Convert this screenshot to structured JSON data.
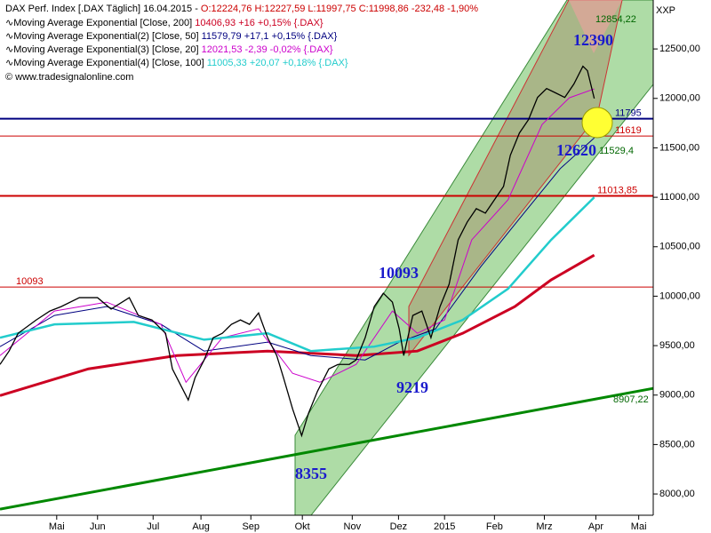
{
  "chart_data": {
    "type": "line",
    "title": "DAX Perf. Index [.DAX Täglich] 16.04.2015 - ",
    "ohlc": "O:12224,76 H:12227,59 L:11997,75 C:11998,86 -232,48 -1,90%",
    "source": "© www.tradesignalonline.com",
    "axis_label": "XXP",
    "xlim": [
      0,
      288
    ],
    "xticks": [
      {
        "value": 25,
        "label": "Mai"
      },
      {
        "value": 43,
        "label": "Jun"
      },
      {
        "value": 67.5,
        "label": "Jul"
      },
      {
        "value": 88.6,
        "label": "Aug"
      },
      {
        "value": 110.6,
        "label": "Sep"
      },
      {
        "value": 133.3,
        "label": "Okt"
      },
      {
        "value": 155.3,
        "label": "Nov"
      },
      {
        "value": 175.7,
        "label": "Dez"
      },
      {
        "value": 196,
        "label": "2015"
      },
      {
        "value": 218,
        "label": "Feb"
      },
      {
        "value": 240,
        "label": "Mrz"
      },
      {
        "value": 262.7,
        "label": "Apr"
      },
      {
        "value": 281.6,
        "label": "Mai"
      }
    ],
    "ylim": [
      7785,
      12995
    ],
    "yticks": [
      {
        "value": 8000,
        "label": "8000,00"
      },
      {
        "value": 8500,
        "label": "8500,00"
      },
      {
        "value": 9000,
        "label": "9000,00"
      },
      {
        "value": 9500,
        "label": "9500,00"
      },
      {
        "value": 10000,
        "label": "10000,00"
      },
      {
        "value": 10500,
        "label": "10500,00"
      },
      {
        "value": 11000,
        "label": "11000,00"
      },
      {
        "value": 11500,
        "label": "11500,00"
      },
      {
        "value": 12000,
        "label": "12000,00"
      },
      {
        "value": 12500,
        "label": "12500,00"
      }
    ],
    "price": {
      "color": "#000000",
      "x": [
        0,
        4,
        8,
        16,
        22,
        27,
        35,
        43,
        49,
        57,
        61,
        67,
        73,
        76,
        80,
        83,
        86,
        90,
        94,
        98,
        102,
        106,
        110,
        114,
        118,
        122,
        125,
        129,
        133,
        136,
        140,
        145,
        149,
        154,
        157,
        161,
        165,
        169,
        173,
        176,
        178,
        182,
        186,
        190,
        194,
        198,
        202,
        206,
        210,
        214,
        218,
        222,
        225,
        229,
        233,
        237,
        241,
        245,
        249,
        253,
        257,
        259,
        262
      ],
      "values": [
        9310,
        9445,
        9625,
        9760,
        9850,
        9895,
        9985,
        9985,
        9870,
        9985,
        9805,
        9760,
        9625,
        9265,
        9085,
        8950,
        9175,
        9355,
        9580,
        9625,
        9715,
        9760,
        9715,
        9830,
        9580,
        9400,
        9175,
        8860,
        8590,
        8815,
        9040,
        9265,
        9310,
        9310,
        9355,
        9580,
        9895,
        10030,
        9940,
        9670,
        9400,
        9805,
        9850,
        9580,
        9895,
        10120,
        10570,
        10750,
        10885,
        10840,
        10975,
        11110,
        11425,
        11650,
        11785,
        12010,
        12100,
        12055,
        12010,
        12145,
        12325,
        12280,
        11999
      ]
    },
    "series": [
      {
        "name": "Moving Average Exponential [Close, 200]",
        "stat": "10406,93 +16 +0,15% {.DAX}",
        "color": "#cc0022",
        "width": 3,
        "x": [
          0,
          39,
          78,
          118,
          157,
          184,
          204,
          227,
          243,
          262
        ],
        "values": [
          8995,
          9265,
          9400,
          9445,
          9400,
          9445,
          9625,
          9895,
          10165,
          10415
        ]
      },
      {
        "name": "Moving Average Exponential(2) [Close, 50]",
        "stat": "11579,79 +17,1 +0,15% {.DAX}",
        "color": "#000080",
        "width": 1,
        "x": [
          0,
          24,
          47,
          71,
          90,
          118,
          137,
          161,
          176,
          192,
          212,
          231,
          247,
          262
        ],
        "values": [
          9490,
          9805,
          9895,
          9715,
          9445,
          9535,
          9400,
          9355,
          9535,
          9670,
          10300,
          10840,
          11290,
          11600
        ]
      },
      {
        "name": "Moving Average Exponential(3) [Close, 20]",
        "stat": "12021,53 -2,39 -0,02% {.DAX}",
        "color": "#cc00cc",
        "width": 1,
        "x": [
          0,
          24,
          47,
          71,
          82,
          98,
          114,
          129,
          141,
          157,
          173,
          184,
          196,
          208,
          224,
          239,
          251,
          262
        ],
        "values": [
          9400,
          9850,
          9940,
          9715,
          9130,
          9580,
          9670,
          9220,
          9130,
          9310,
          9850,
          9625,
          9760,
          10570,
          10975,
          11736,
          12006,
          12096
        ]
      },
      {
        "name": "Moving Average Exponential(4) [Close, 100]",
        "stat": "11005,33 +20,07 +0,18% {.DAX}",
        "color": "#22cccc",
        "width": 2.5,
        "x": [
          0,
          24,
          59,
          90,
          118,
          137,
          165,
          184,
          204,
          224,
          243,
          262
        ],
        "values": [
          9580,
          9715,
          9740,
          9560,
          9625,
          9445,
          9490,
          9580,
          9760,
          10075,
          10570,
          11000
        ]
      }
    ],
    "levels": [
      {
        "value": 11795,
        "label": "11795",
        "color": "#000080"
      },
      {
        "value": 11619,
        "label": "11619",
        "color": "#cc0000"
      },
      {
        "value": 11013.85,
        "label": "11013,85",
        "color": "#cc0000"
      },
      {
        "value": 10093,
        "label": "10093",
        "color": "#cc0000"
      }
    ],
    "trendline": {
      "color": "#008800",
      "x": [
        0,
        288
      ],
      "values": [
        7846,
        9068
      ]
    },
    "channel_labels": [
      "12854,22",
      "11529,4",
      "8907,22"
    ],
    "annotations": [
      "12390",
      "12620",
      "10093",
      "9219",
      "8355"
    ]
  }
}
